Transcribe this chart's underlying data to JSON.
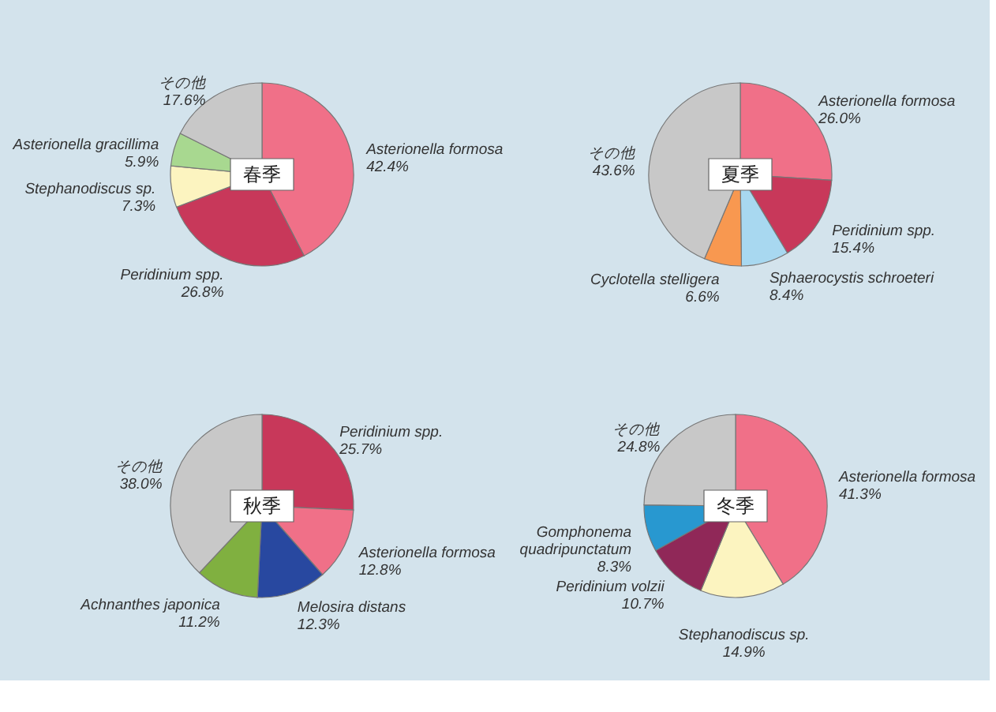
{
  "chart_data": [
    {
      "type": "pie",
      "title": "春季",
      "categories": [
        "Asterionella formosa",
        "Peridinium spp.",
        "Stephanodiscus sp.",
        "Asterionella gracillima",
        "その他"
      ],
      "values": [
        42.4,
        26.8,
        7.3,
        5.9,
        17.6
      ],
      "value_labels": [
        "42.4%",
        "26.8%",
        "7.3%",
        "5.9%",
        "17.6%"
      ],
      "colors": [
        "#f07088",
        "#c8385a",
        "#fcf4c0",
        "#a8d890",
        "#c8c8c8"
      ]
    },
    {
      "type": "pie",
      "title": "夏季",
      "categories": [
        "Asterionella formosa",
        "Peridinium spp.",
        "Sphaerocystis schroeteri",
        "Cyclotella stelligera",
        "その他"
      ],
      "values": [
        26.0,
        15.4,
        8.4,
        6.6,
        43.6
      ],
      "value_labels": [
        "26.0%",
        "15.4%",
        "8.4%",
        "6.6%",
        "43.6%"
      ],
      "colors": [
        "#f07088",
        "#c8385a",
        "#a8d8f0",
        "#f89850",
        "#c8c8c8"
      ]
    },
    {
      "type": "pie",
      "title": "秋季",
      "categories": [
        "Peridinium spp.",
        "Asterionella formosa",
        "Melosira distans",
        "Achnanthes japonica",
        "その他"
      ],
      "values": [
        25.7,
        12.8,
        12.3,
        11.2,
        38.0
      ],
      "value_labels": [
        "25.7%",
        "12.8%",
        "12.3%",
        "11.2%",
        "38.0%"
      ],
      "colors": [
        "#c8385a",
        "#f07088",
        "#2848a0",
        "#80b040",
        "#c8c8c8"
      ]
    },
    {
      "type": "pie",
      "title": "冬季",
      "categories": [
        "Asterionella formosa",
        "Stephanodiscus sp.",
        "Peridinium volzii",
        "Gomphonema quadripunctatum",
        "その他"
      ],
      "values": [
        41.3,
        14.9,
        10.7,
        8.3,
        24.8
      ],
      "value_labels": [
        "41.3%",
        "14.9%",
        "10.7%",
        "8.3%",
        "24.8%"
      ],
      "colors": [
        "#f07088",
        "#fcf4c0",
        "#902858",
        "#2898d0",
        "#c8c8c8"
      ]
    }
  ]
}
